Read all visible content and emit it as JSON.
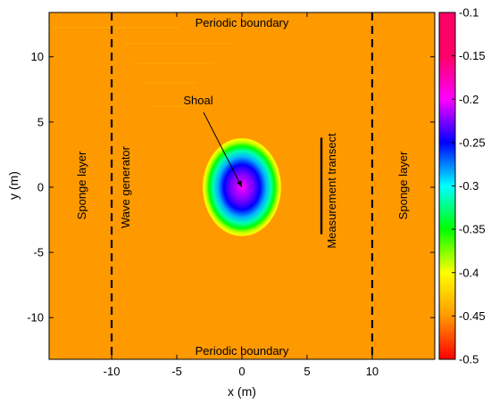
{
  "chart_data": {
    "type": "heatmap",
    "xlabel": "x (m)",
    "ylabel": "y (m)",
    "xlim": [
      -14.8,
      14.8
    ],
    "ylim": [
      -13.2,
      13.4
    ],
    "x_ticks": [
      -10,
      -5,
      0,
      5,
      10
    ],
    "y_ticks": [
      -10,
      -5,
      0,
      5,
      10
    ],
    "x_tick_labels": [
      "-10",
      "-5",
      "0",
      "5",
      "10"
    ],
    "y_tick_labels": [
      "-10",
      "-5",
      "0",
      "5",
      "10"
    ],
    "colorbar": {
      "clim": [
        -0.5,
        -0.1
      ],
      "ticks": [
        -0.1,
        -0.15,
        -0.2,
        -0.25,
        -0.3,
        -0.35,
        -0.4,
        -0.45,
        -0.5
      ],
      "tick_labels": [
        "-0.1",
        "-0.15",
        "-0.2",
        "-0.25",
        "-0.3",
        "-0.35",
        "-0.4",
        "-0.45",
        "-0.5"
      ],
      "colormap": [
        "#ff0000",
        "#ff9900",
        "#ffff00",
        "#00ff00",
        "#00ffff",
        "#0000ff",
        "#ff00ff",
        "#ff0066"
      ]
    },
    "background_value": -0.45,
    "shoal": {
      "center": [
        0,
        0
      ],
      "semi_axis_x": 3,
      "semi_axis_y": 3.75,
      "edge_value": -0.45,
      "crest_value": -0.15
    },
    "lines": [
      {
        "kind": "wave-generator",
        "x": -10,
        "style": "dashed"
      },
      {
        "kind": "sponge-boundary",
        "x": 10,
        "style": "dashed"
      },
      {
        "kind": "measurement-transect",
        "x": 6.1,
        "y_range": [
          -3.6,
          3.8
        ],
        "style": "solid"
      }
    ],
    "annotations": {
      "periodic_top": "Periodic boundary",
      "periodic_bottom": "Periodic boundary",
      "sponge_left": "Sponge layer",
      "sponge_right": "Sponge layer",
      "wave_generator": "Wave generator",
      "measurement_transect": "Measurement transect",
      "shoal": "Shoal"
    }
  }
}
